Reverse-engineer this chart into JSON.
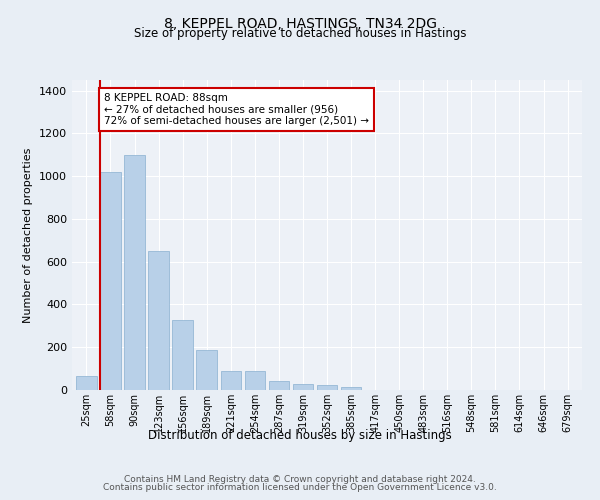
{
  "title_line1": "8, KEPPEL ROAD, HASTINGS, TN34 2DG",
  "title_line2": "Size of property relative to detached houses in Hastings",
  "xlabel": "Distribution of detached houses by size in Hastings",
  "ylabel": "Number of detached properties",
  "bar_labels": [
    "25sqm",
    "58sqm",
    "90sqm",
    "123sqm",
    "156sqm",
    "189sqm",
    "221sqm",
    "254sqm",
    "287sqm",
    "319sqm",
    "352sqm",
    "385sqm",
    "417sqm",
    "450sqm",
    "483sqm",
    "516sqm",
    "548sqm",
    "581sqm",
    "614sqm",
    "646sqm",
    "679sqm"
  ],
  "bar_values": [
    65,
    1020,
    1100,
    648,
    328,
    185,
    90,
    90,
    42,
    27,
    22,
    15,
    0,
    0,
    0,
    0,
    0,
    0,
    0,
    0,
    0
  ],
  "bar_color": "#b8d0e8",
  "bar_edge_color": "#8ab0d0",
  "vline_x_idx": 1,
  "vline_color": "#cc0000",
  "ylim": [
    0,
    1450
  ],
  "yticks": [
    0,
    200,
    400,
    600,
    800,
    1000,
    1200,
    1400
  ],
  "annotation_text": "8 KEPPEL ROAD: 88sqm\n← 27% of detached houses are smaller (956)\n72% of semi-detached houses are larger (2,501) →",
  "annotation_box_color": "#ffffff",
  "annotation_box_edge": "#cc0000",
  "footer_line1": "Contains HM Land Registry data © Crown copyright and database right 2024.",
  "footer_line2": "Contains public sector information licensed under the Open Government Licence v3.0.",
  "bg_color": "#e8eef5",
  "plot_bg_color": "#edf1f7"
}
